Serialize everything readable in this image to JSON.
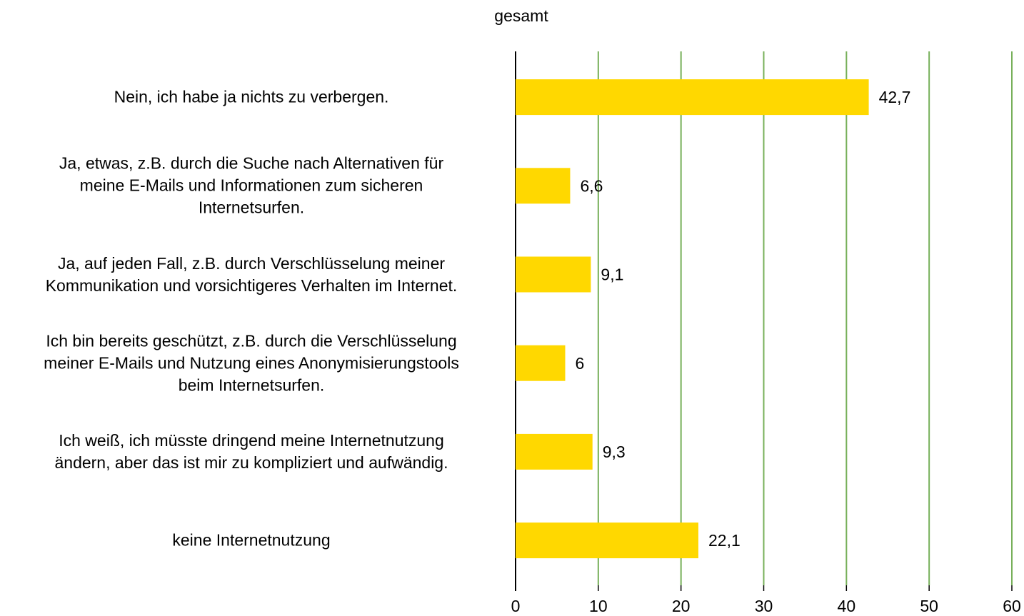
{
  "chart_data": {
    "type": "bar",
    "orientation": "horizontal",
    "title": "gesamt",
    "categories": [
      "Nein, ich habe ja nichts zu verbergen.",
      "Ja, etwas, z.B. durch die Suche nach Alternativen für\nmeine E-Mails und Informationen zum sicheren\nInternetsurfen.",
      "Ja, auf jeden Fall, z.B. durch Verschlüsselung meiner\nKommunikation und vorsichtigeres Verhalten im Internet.",
      "Ich bin bereits geschützt, z.B. durch die Verschlüsselung\nmeiner E-Mails und Nutzung eines Anonymisierungstools\nbeim Internetsurfen.",
      "Ich weiß, ich müsste dringend meine Internetnutzung\nändern, aber das ist mir zu kompliziert und aufwändig.",
      "keine Internetnutzung"
    ],
    "values": [
      42.7,
      6.6,
      9.1,
      6,
      9.3,
      22.1
    ],
    "value_labels": [
      "42,7",
      "6,6",
      "9,1",
      "6",
      "9,3",
      "22,1"
    ],
    "color": "#ffd800",
    "grid_color": "#77b05a",
    "xlim": [
      0,
      60
    ],
    "xticks": [
      0,
      10,
      20,
      30,
      40,
      50,
      60
    ],
    "grid": true
  }
}
